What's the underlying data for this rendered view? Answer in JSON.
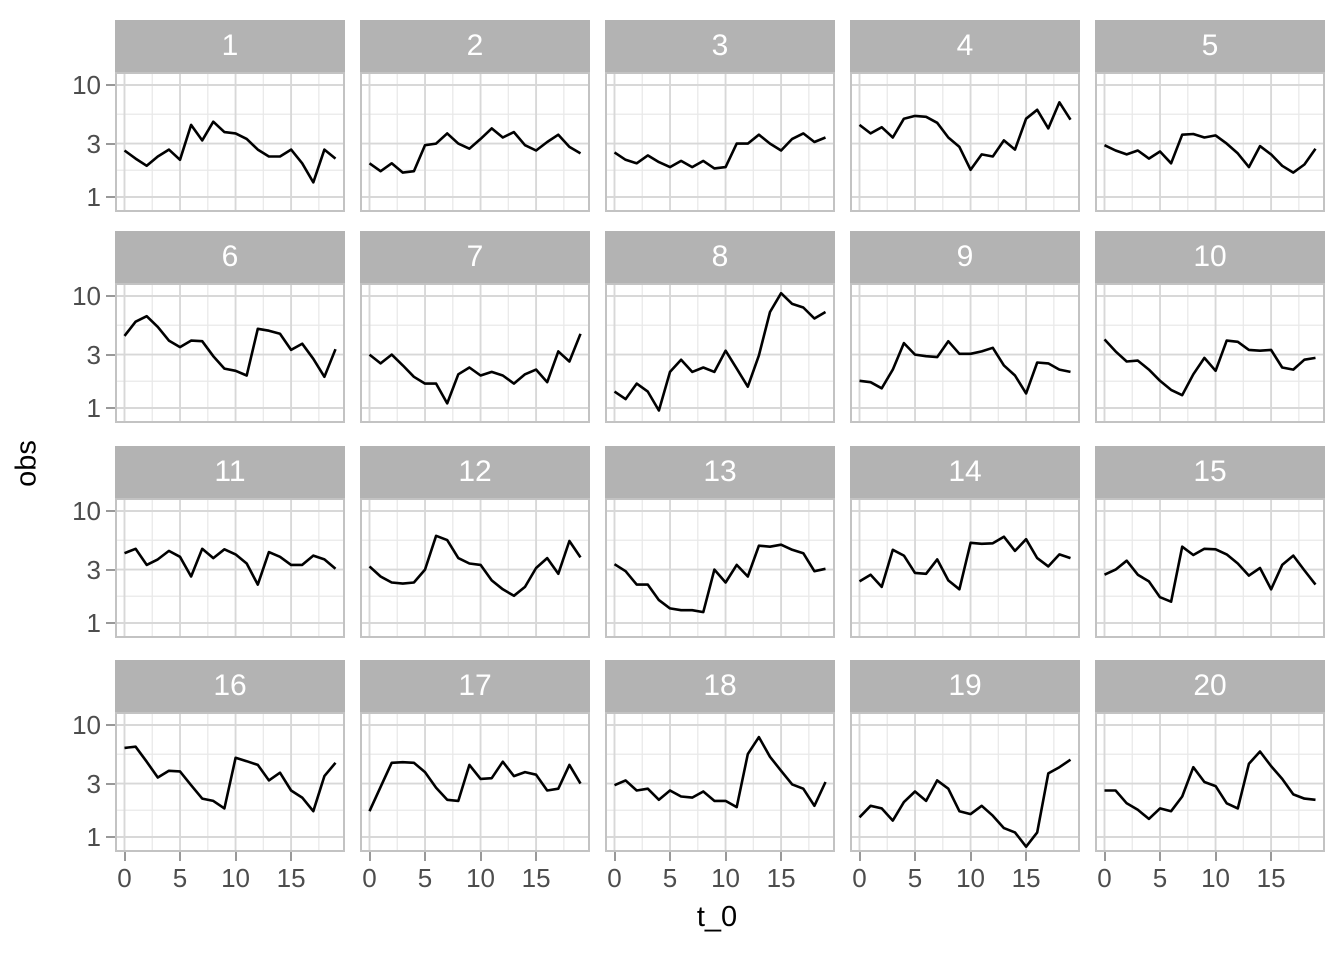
{
  "chart_data": {
    "type": "line",
    "title": "",
    "xlabel": "t_0",
    "ylabel": "obs",
    "x_axis": {
      "range": [
        0,
        19
      ],
      "major_ticks": [
        0,
        5,
        10,
        15
      ],
      "tick_labels": [
        "0",
        "5",
        "10",
        "15"
      ],
      "minor_gridlines": [
        2.5,
        7.5,
        12.5,
        17.5
      ]
    },
    "y_axis": {
      "scale": "log10",
      "range": [
        0.78,
        13
      ],
      "major_ticks": [
        10,
        3,
        1
      ],
      "tick_labels": [
        "10",
        "3",
        "1"
      ],
      "minor_gridlines": [
        1.7321,
        5.4772
      ]
    },
    "legend": "none",
    "grid": "on",
    "facet_grid": {
      "rows": 4,
      "cols": 5
    },
    "x": [
      0,
      1,
      2,
      3,
      4,
      5,
      6,
      7,
      8,
      9,
      10,
      11,
      12,
      13,
      14,
      15,
      16,
      17,
      18,
      19
    ],
    "facets": [
      {
        "label": "1",
        "values": [
          2.6,
          2.2,
          1.9,
          2.3,
          2.65,
          2.15,
          4.4,
          3.2,
          4.7,
          3.8,
          3.7,
          3.3,
          2.65,
          2.3,
          2.3,
          2.65,
          2.0,
          1.35,
          2.65,
          2.2
        ]
      },
      {
        "label": "2",
        "values": [
          2.0,
          1.7,
          2.0,
          1.65,
          1.7,
          2.9,
          3.0,
          3.7,
          3.0,
          2.7,
          3.3,
          4.1,
          3.4,
          3.8,
          2.9,
          2.6,
          3.1,
          3.6,
          2.8,
          2.45
        ]
      },
      {
        "label": "3",
        "values": [
          2.5,
          2.15,
          2.0,
          2.35,
          2.05,
          1.85,
          2.1,
          1.85,
          2.1,
          1.8,
          1.85,
          3.0,
          3.0,
          3.6,
          3.0,
          2.6,
          3.3,
          3.7,
          3.1,
          3.4
        ]
      },
      {
        "label": "4",
        "values": [
          4.4,
          3.7,
          4.2,
          3.4,
          5.0,
          5.3,
          5.2,
          4.6,
          3.4,
          2.8,
          1.75,
          2.4,
          2.3,
          3.2,
          2.65,
          5.0,
          6.0,
          4.1,
          7.0,
          4.9
        ]
      },
      {
        "label": "5",
        "values": [
          2.9,
          2.6,
          2.4,
          2.6,
          2.2,
          2.55,
          2.0,
          3.6,
          3.65,
          3.4,
          3.55,
          3.0,
          2.45,
          1.85,
          2.85,
          2.4,
          1.9,
          1.65,
          1.95,
          2.7
        ]
      },
      {
        "label": "6",
        "values": [
          4.4,
          5.9,
          6.6,
          5.3,
          4.0,
          3.5,
          4.0,
          3.95,
          2.9,
          2.25,
          2.15,
          1.95,
          5.1,
          4.9,
          4.6,
          3.3,
          3.75,
          2.75,
          1.9,
          3.35
        ]
      },
      {
        "label": "7",
        "values": [
          3.0,
          2.5,
          3.0,
          2.4,
          1.9,
          1.65,
          1.65,
          1.1,
          2.0,
          2.3,
          1.95,
          2.1,
          1.95,
          1.65,
          2.0,
          2.2,
          1.7,
          3.2,
          2.6,
          4.6
        ]
      },
      {
        "label": "8",
        "values": [
          1.4,
          1.2,
          1.65,
          1.4,
          0.95,
          2.1,
          2.7,
          2.1,
          2.3,
          2.1,
          3.25,
          2.25,
          1.55,
          2.95,
          7.2,
          10.6,
          8.5,
          7.9,
          6.3,
          7.2
        ]
      },
      {
        "label": "9",
        "values": [
          1.75,
          1.7,
          1.5,
          2.2,
          3.8,
          3.0,
          2.9,
          2.85,
          3.95,
          3.05,
          3.05,
          3.2,
          3.45,
          2.4,
          1.95,
          1.35,
          2.55,
          2.5,
          2.2,
          2.1
        ]
      },
      {
        "label": "10",
        "values": [
          4.1,
          3.2,
          2.6,
          2.65,
          2.2,
          1.75,
          1.45,
          1.3,
          2.0,
          2.8,
          2.15,
          4.0,
          3.9,
          3.3,
          3.25,
          3.3,
          2.3,
          2.2,
          2.7,
          2.8
        ]
      },
      {
        "label": "11",
        "values": [
          4.2,
          4.6,
          3.3,
          3.7,
          4.4,
          3.9,
          2.6,
          4.6,
          3.8,
          4.55,
          4.1,
          3.4,
          2.2,
          4.3,
          3.9,
          3.3,
          3.3,
          4.0,
          3.7,
          3.05
        ]
      },
      {
        "label": "12",
        "values": [
          3.2,
          2.6,
          2.3,
          2.25,
          2.3,
          3.0,
          6.0,
          5.5,
          3.8,
          3.4,
          3.3,
          2.4,
          2.0,
          1.75,
          2.1,
          3.1,
          3.8,
          2.75,
          5.4,
          3.85
        ]
      },
      {
        "label": "13",
        "values": [
          3.35,
          2.9,
          2.2,
          2.2,
          1.6,
          1.35,
          1.3,
          1.3,
          1.25,
          3.0,
          2.3,
          3.3,
          2.6,
          4.9,
          4.8,
          5.0,
          4.5,
          4.2,
          2.9,
          3.05
        ]
      },
      {
        "label": "14",
        "values": [
          2.35,
          2.7,
          2.1,
          4.5,
          4.0,
          2.8,
          2.75,
          3.7,
          2.4,
          2.0,
          5.2,
          5.1,
          5.15,
          5.9,
          4.4,
          5.6,
          3.8,
          3.2,
          4.1,
          3.8
        ]
      },
      {
        "label": "15",
        "values": [
          2.7,
          3.0,
          3.6,
          2.7,
          2.35,
          1.7,
          1.55,
          4.8,
          4.05,
          4.6,
          4.55,
          4.1,
          3.4,
          2.65,
          3.1,
          2.0,
          3.3,
          4.0,
          2.95,
          2.2
        ]
      },
      {
        "label": "16",
        "values": [
          6.25,
          6.4,
          4.7,
          3.4,
          3.9,
          3.85,
          2.9,
          2.2,
          2.1,
          1.8,
          5.1,
          4.75,
          4.4,
          3.2,
          3.75,
          2.6,
          2.25,
          1.7,
          3.5,
          4.6
        ]
      },
      {
        "label": "17",
        "values": [
          1.7,
          2.8,
          4.6,
          4.65,
          4.6,
          3.8,
          2.75,
          2.15,
          2.1,
          4.4,
          3.3,
          3.35,
          4.7,
          3.5,
          3.8,
          3.6,
          2.6,
          2.7,
          4.4,
          3.0
        ]
      },
      {
        "label": "18",
        "values": [
          2.9,
          3.2,
          2.6,
          2.7,
          2.15,
          2.6,
          2.3,
          2.25,
          2.55,
          2.1,
          2.1,
          1.85,
          5.5,
          7.8,
          5.2,
          3.9,
          2.95,
          2.7,
          1.9,
          3.1
        ]
      },
      {
        "label": "19",
        "values": [
          1.5,
          1.9,
          1.8,
          1.4,
          2.05,
          2.55,
          2.1,
          3.2,
          2.7,
          1.7,
          1.6,
          1.9,
          1.55,
          1.2,
          1.1,
          0.82,
          1.1,
          3.7,
          4.2,
          4.9
        ]
      },
      {
        "label": "20",
        "values": [
          2.6,
          2.6,
          2.0,
          1.75,
          1.45,
          1.8,
          1.7,
          2.3,
          4.2,
          3.1,
          2.85,
          2.0,
          1.8,
          4.5,
          5.8,
          4.3,
          3.3,
          2.4,
          2.2,
          2.15
        ]
      }
    ]
  },
  "style": {
    "background": "#ffffff",
    "strip_fill": "#b3b3b3",
    "strip_text": "#ffffff",
    "grid_major": "#d8d8d8",
    "grid_minor": "#e9e9e9",
    "panel_border": "#c3c3c3",
    "line_color": "#000000",
    "tick_color": "#999999",
    "tick_label_color": "#4d4d4d",
    "axis_title_color": "#000000"
  }
}
